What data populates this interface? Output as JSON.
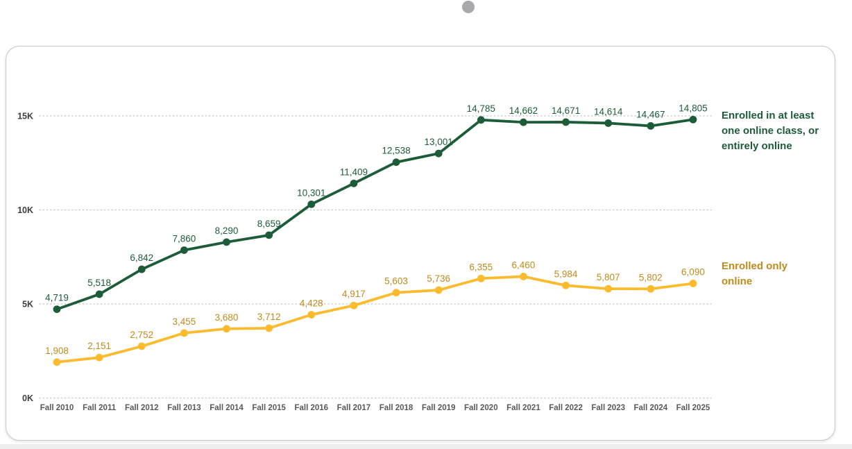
{
  "page": {
    "background": "#ffffff",
    "bottom_strip_color": "#ededee"
  },
  "indicator": {
    "color": "#a8a8ad"
  },
  "card": {
    "background": "#ffffff",
    "border_color": "#c7c7c7"
  },
  "axis": {
    "x_label_color": "#595959",
    "y_label_color": "#3f3f3f",
    "gridline_color": "#cbcbcb"
  },
  "chart_data": {
    "type": "line",
    "categories": [
      "Fall 2010",
      "Fall 2011",
      "Fall 2012",
      "Fall 2013",
      "Fall 2014",
      "Fall 2015",
      "Fall 2016",
      "Fall 2017",
      "Fall 2018",
      "Fall 2019",
      "Fall 2020",
      "Fall 2021",
      "Fall 2022",
      "Fall 2023",
      "Fall 2024",
      "Fall 2025"
    ],
    "series": [
      {
        "name": "Enrolled in at least one online class, or entirely online",
        "color": "#1d5c38",
        "label_color": "#1d5c38",
        "values": [
          4719,
          5518,
          6842,
          7860,
          8290,
          8659,
          10301,
          11409,
          12538,
          13001,
          14785,
          14662,
          14671,
          14614,
          14467,
          14805
        ]
      },
      {
        "name": "Enrolled only online",
        "color": "#fcba2d",
        "label_color": "#c18a1b",
        "values": [
          1908,
          2151,
          2752,
          3455,
          3680,
          3712,
          4428,
          4917,
          5603,
          5736,
          6355,
          6460,
          5984,
          5807,
          5802,
          6090
        ]
      }
    ],
    "y_ticks": [
      {
        "value": 0,
        "label": "0K"
      },
      {
        "value": 5000,
        "label": "5K"
      },
      {
        "value": 10000,
        "label": "10K"
      },
      {
        "value": 15000,
        "label": "15K"
      }
    ],
    "ylim": [
      0,
      15000
    ],
    "grid": "dotted-horizontal",
    "legend_position": "right",
    "title": "",
    "xlabel": "",
    "ylabel": ""
  }
}
